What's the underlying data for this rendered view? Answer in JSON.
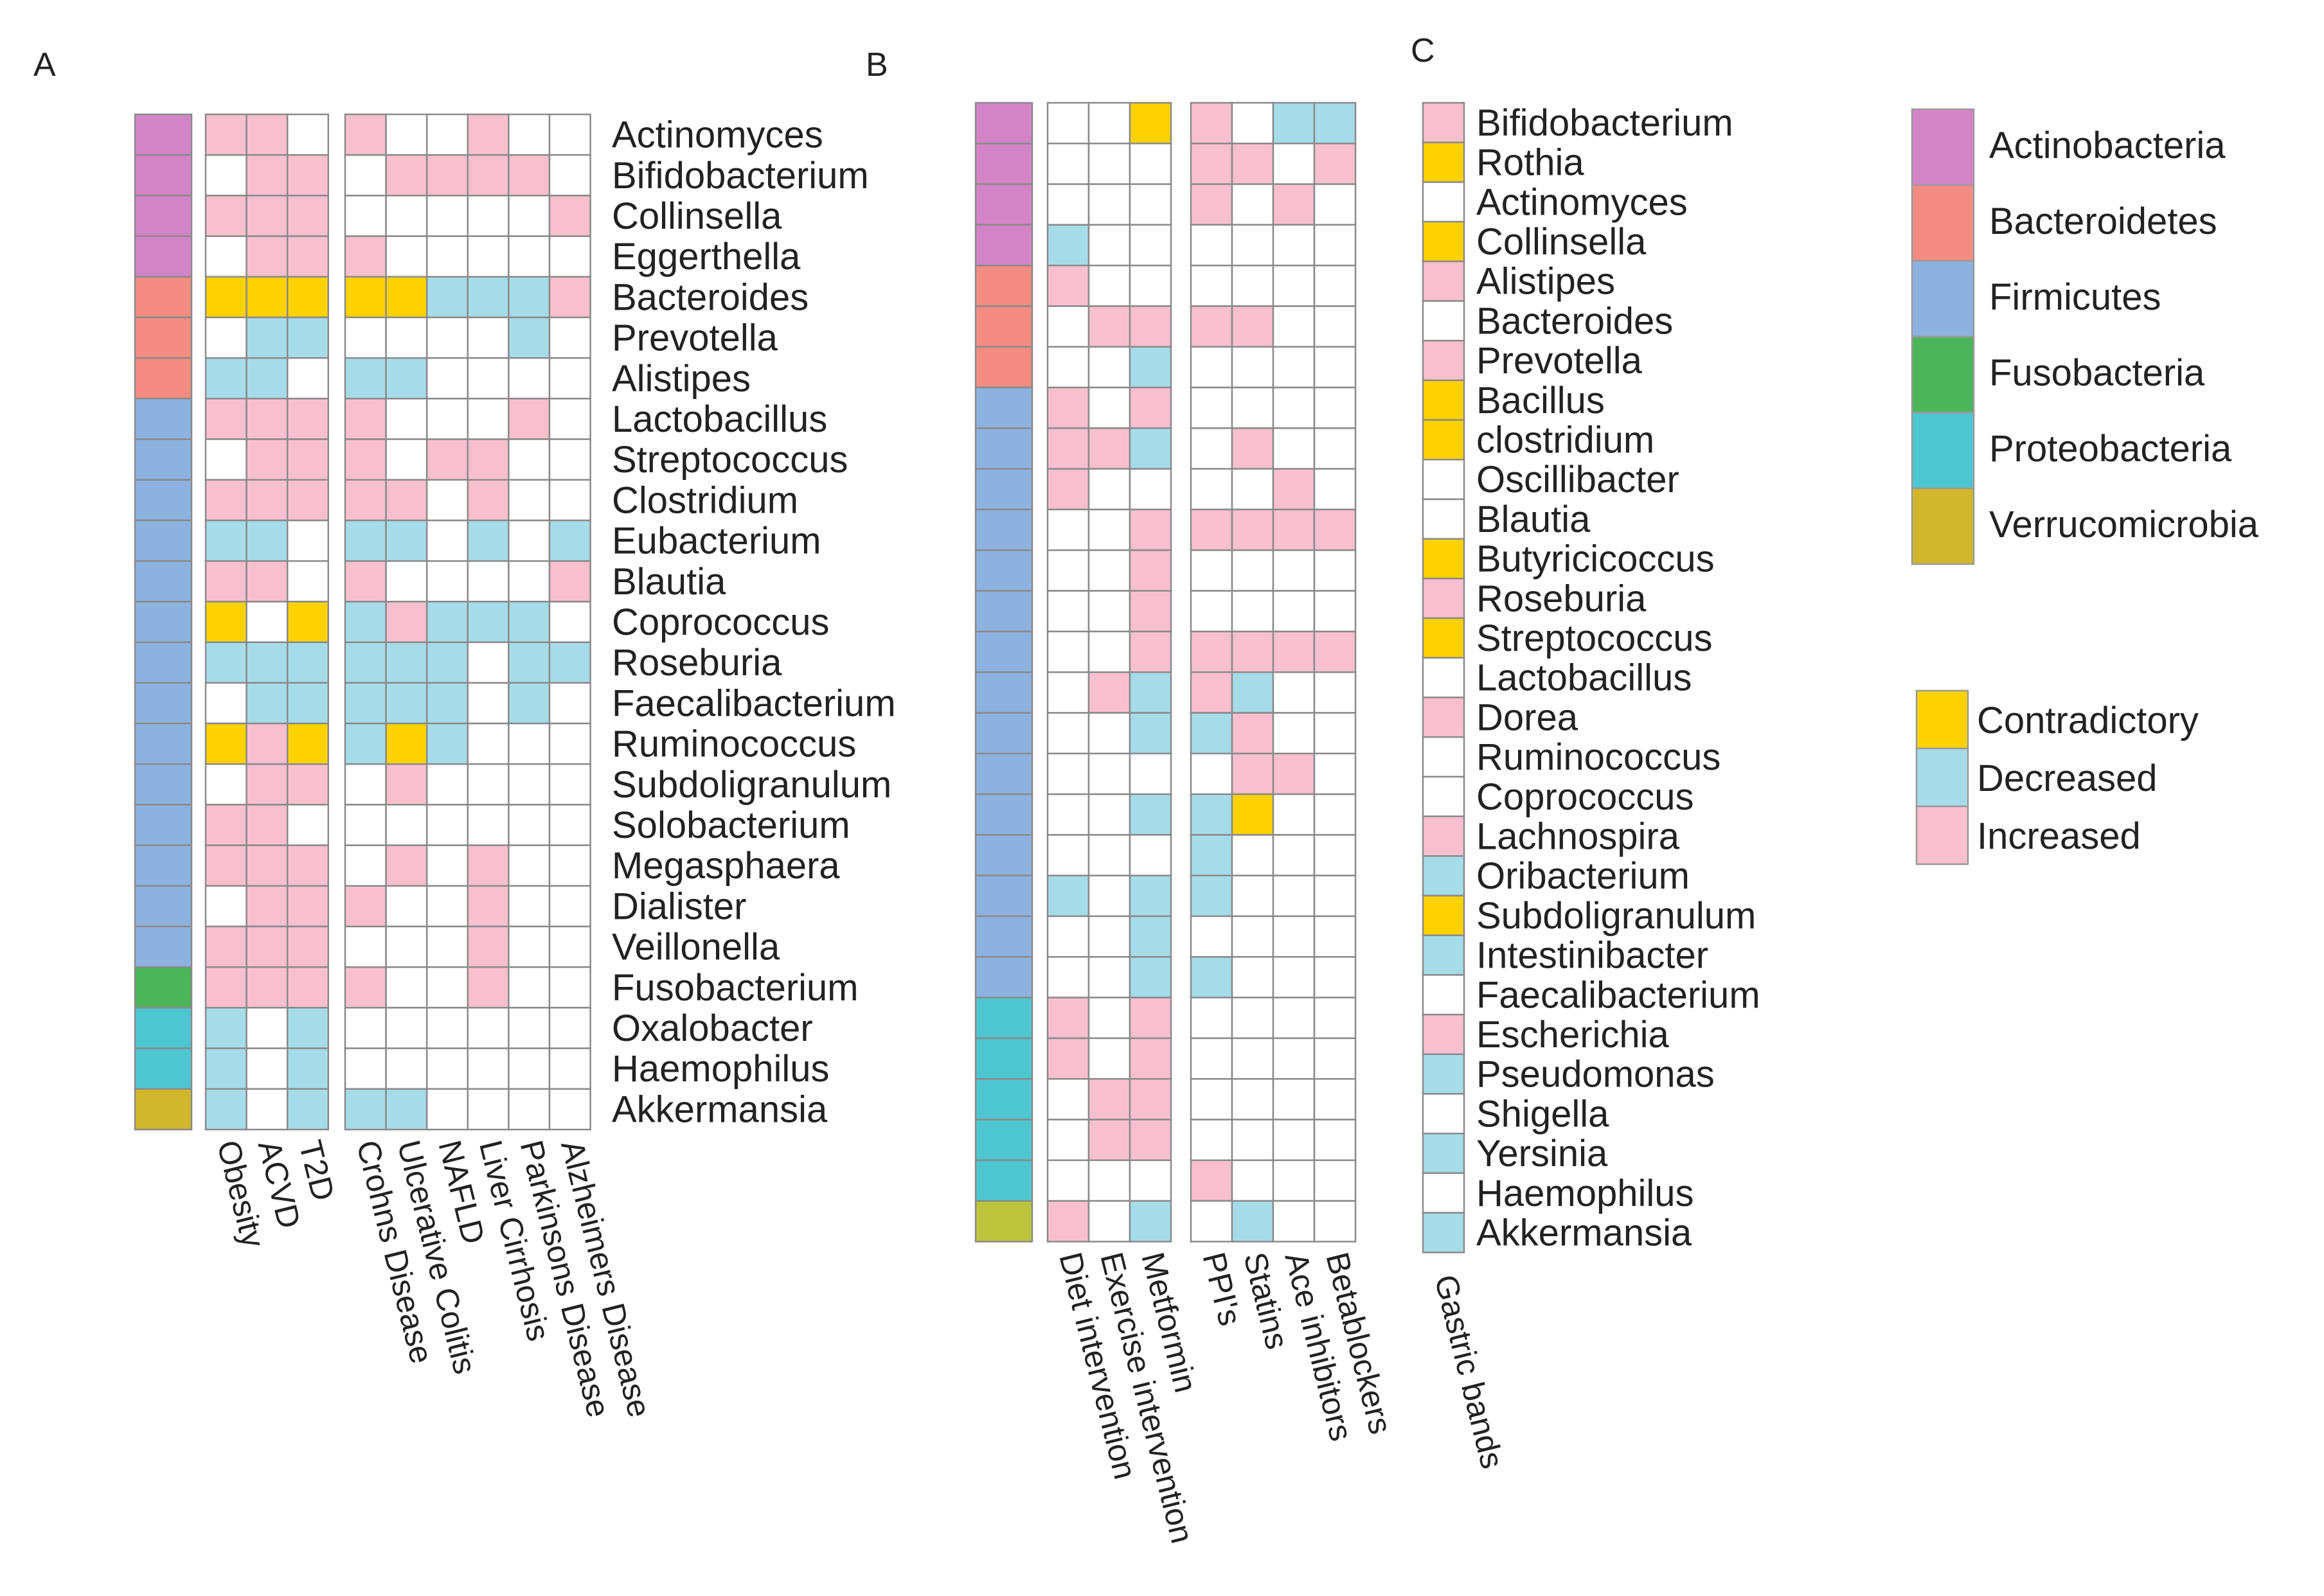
{
  "colors": {
    "phylum": {
      "Actinobacteria": "#d384c6",
      "Bacteroidetes": "#f48c82",
      "Firmicutes": "#8db2e0",
      "Fusobacteria": "#4cb55a",
      "Proteobacteria": "#4dc6d0",
      "Verrucomicrobia": "#d0b72c",
      "Verrucomicrobia_B": "#bcc43c"
    },
    "status": {
      "C": "#fdd200",
      "D": "#a6dcea",
      "I": "#f8c0cf",
      "": "#ffffff"
    },
    "grid": "#8a8a8a"
  },
  "legend": {
    "phyla": [
      {
        "label": "Actinobacteria",
        "key": "Actinobacteria"
      },
      {
        "label": "Bacteroidetes",
        "key": "Bacteroidetes"
      },
      {
        "label": "Firmicutes",
        "key": "Firmicutes"
      },
      {
        "label": "Fusobacteria",
        "key": "Fusobacteria"
      },
      {
        "label": "Proteobacteria",
        "key": "Proteobacteria"
      },
      {
        "label": "Verrucomicrobia",
        "key": "Verrucomicrobia"
      }
    ],
    "status": [
      {
        "label": "Contradictory",
        "key": "C"
      },
      {
        "label": "Decreased",
        "key": "D"
      },
      {
        "label": "Increased",
        "key": "I"
      }
    ]
  },
  "chart_data": [
    {
      "panel": "A",
      "type": "heatmap",
      "rows": [
        "Actinomyces",
        "Bifidobacterium",
        "Collinsella",
        "Eggerthella",
        "Bacteroides",
        "Prevotella",
        "Alistipes",
        "Lactobacillus",
        "Streptococcus",
        "Clostridium",
        "Eubacterium",
        "Blautia",
        "Coprococcus",
        "Roseburia",
        "Faecalibacterium",
        "Ruminococcus",
        "Subdoligranulum",
        "Solobacterium",
        "Megasphaera",
        "Dialister",
        "Veillonella",
        "Fusobacterium",
        "Oxalobacter",
        "Haemophilus",
        "Akkermansia"
      ],
      "phylum": [
        "Actinobacteria",
        "Actinobacteria",
        "Actinobacteria",
        "Actinobacteria",
        "Bacteroidetes",
        "Bacteroidetes",
        "Bacteroidetes",
        "Firmicutes",
        "Firmicutes",
        "Firmicutes",
        "Firmicutes",
        "Firmicutes",
        "Firmicutes",
        "Firmicutes",
        "Firmicutes",
        "Firmicutes",
        "Firmicutes",
        "Firmicutes",
        "Firmicutes",
        "Firmicutes",
        "Firmicutes",
        "Fusobacteria",
        "Proteobacteria",
        "Proteobacteria",
        "Verrucomicrobia"
      ],
      "groups": [
        {
          "columns": [
            "Obesity",
            "ACVD",
            "T2D"
          ],
          "values": [
            [
              "I",
              "I",
              ""
            ],
            [
              "",
              "I",
              "I"
            ],
            [
              "I",
              "I",
              "I"
            ],
            [
              "",
              "I",
              "I"
            ],
            [
              "C",
              "C",
              "C"
            ],
            [
              "",
              "D",
              "D"
            ],
            [
              "D",
              "D",
              ""
            ],
            [
              "I",
              "I",
              "I"
            ],
            [
              "",
              "I",
              "I"
            ],
            [
              "I",
              "I",
              "I"
            ],
            [
              "D",
              "D",
              ""
            ],
            [
              "I",
              "I",
              ""
            ],
            [
              "C",
              "",
              "C"
            ],
            [
              "D",
              "D",
              "D"
            ],
            [
              "",
              "D",
              "D"
            ],
            [
              "C",
              "I",
              "C"
            ],
            [
              "",
              "I",
              "I"
            ],
            [
              "I",
              "I",
              ""
            ],
            [
              "I",
              "I",
              "I"
            ],
            [
              "",
              "I",
              "I"
            ],
            [
              "I",
              "I",
              "I"
            ],
            [
              "I",
              "I",
              "I"
            ],
            [
              "D",
              "",
              "D"
            ],
            [
              "D",
              "",
              "D"
            ],
            [
              "D",
              "",
              "D"
            ]
          ]
        },
        {
          "columns": [
            "Crohns Disease",
            "Ulcerative Colitis",
            "NAFLD",
            "Liver Cirrhosis",
            "Parkinsons Disease",
            "Alzheimers Disease"
          ],
          "values": [
            [
              "I",
              "",
              "",
              "I",
              "",
              ""
            ],
            [
              "",
              "I",
              "I",
              "I",
              "I",
              ""
            ],
            [
              "",
              "",
              "",
              "",
              "",
              "I"
            ],
            [
              "I",
              "",
              "",
              "",
              "",
              ""
            ],
            [
              "C",
              "C",
              "D",
              "D",
              "D",
              "I"
            ],
            [
              "",
              "",
              "",
              "",
              "D",
              ""
            ],
            [
              "D",
              "D",
              "",
              "",
              "",
              ""
            ],
            [
              "I",
              "",
              "",
              "",
              "I",
              ""
            ],
            [
              "I",
              "",
              "I",
              "I",
              "",
              ""
            ],
            [
              "I",
              "I",
              "",
              "I",
              "",
              ""
            ],
            [
              "D",
              "D",
              "",
              "D",
              "",
              "D"
            ],
            [
              "I",
              "",
              "",
              "",
              "",
              "I"
            ],
            [
              "D",
              "I",
              "D",
              "D",
              "D",
              ""
            ],
            [
              "D",
              "D",
              "D",
              "",
              "D",
              "D"
            ],
            [
              "D",
              "D",
              "D",
              "",
              "D",
              ""
            ],
            [
              "D",
              "C",
              "D",
              "",
              "",
              ""
            ],
            [
              "",
              "I",
              "",
              "",
              "",
              ""
            ],
            [
              "",
              "",
              "",
              "",
              "",
              ""
            ],
            [
              "",
              "I",
              "",
              "I",
              "",
              ""
            ],
            [
              "I",
              "",
              "",
              "I",
              "",
              ""
            ],
            [
              "",
              "",
              "",
              "I",
              "",
              ""
            ],
            [
              "I",
              "",
              "",
              "I",
              "",
              ""
            ],
            [
              "",
              "",
              "",
              "",
              "",
              ""
            ],
            [
              "",
              "",
              "",
              "",
              "",
              ""
            ],
            [
              "D",
              "D",
              "",
              "",
              "",
              ""
            ]
          ]
        }
      ]
    },
    {
      "panel": "B",
      "type": "heatmap",
      "phylum": [
        "Actinobacteria",
        "Actinobacteria",
        "Actinobacteria",
        "Actinobacteria",
        "Bacteroidetes",
        "Bacteroidetes",
        "Bacteroidetes",
        "Firmicutes",
        "Firmicutes",
        "Firmicutes",
        "Firmicutes",
        "Firmicutes",
        "Firmicutes",
        "Firmicutes",
        "Firmicutes",
        "Firmicutes",
        "Firmicutes",
        "Firmicutes",
        "Firmicutes",
        "Firmicutes",
        "Firmicutes",
        "Firmicutes",
        "Proteobacteria",
        "Proteobacteria",
        "Proteobacteria",
        "Proteobacteria",
        "Proteobacteria",
        "Verrucomicrobia_B"
      ],
      "groups": [
        {
          "columns": [
            "Diet intervention",
            "Exercise intervention",
            "Metformin"
          ],
          "values": [
            [
              "",
              "",
              "C"
            ],
            [
              "",
              "",
              ""
            ],
            [
              "",
              "",
              ""
            ],
            [
              "D",
              "",
              ""
            ],
            [
              "I",
              "",
              ""
            ],
            [
              "",
              "I",
              "I"
            ],
            [
              "",
              "",
              "D"
            ],
            [
              "I",
              "",
              "I"
            ],
            [
              "I",
              "I",
              "D"
            ],
            [
              "I",
              "",
              ""
            ],
            [
              "",
              "",
              "I"
            ],
            [
              "",
              "",
              "I"
            ],
            [
              "",
              "",
              "I"
            ],
            [
              "",
              "",
              "I"
            ],
            [
              "",
              "I",
              "D"
            ],
            [
              "",
              "",
              "D"
            ],
            [
              "",
              "",
              ""
            ],
            [
              "",
              "",
              "D"
            ],
            [
              "",
              "",
              ""
            ],
            [
              "D",
              "",
              "D"
            ],
            [
              "",
              "",
              "D"
            ],
            [
              "",
              "",
              "D"
            ],
            [
              "I",
              "",
              "I"
            ],
            [
              "I",
              "",
              "I"
            ],
            [
              "",
              "I",
              "I"
            ],
            [
              "",
              "I",
              "I"
            ],
            [
              "",
              "",
              ""
            ],
            [
              "I",
              "",
              "D"
            ]
          ]
        },
        {
          "columns": [
            "PPI's",
            "Statins",
            "Ace inhibitors",
            "Betablockers"
          ],
          "values": [
            [
              "I",
              "",
              "D",
              "D"
            ],
            [
              "I",
              "I",
              "",
              "I"
            ],
            [
              "I",
              "",
              "I",
              ""
            ],
            [
              "",
              "",
              "",
              ""
            ],
            [
              "",
              "",
              "",
              ""
            ],
            [
              "I",
              "I",
              "",
              ""
            ],
            [
              "",
              "",
              "",
              ""
            ],
            [
              "",
              "",
              "",
              ""
            ],
            [
              "",
              "I",
              "",
              ""
            ],
            [
              "",
              "",
              "I",
              ""
            ],
            [
              "I",
              "I",
              "I",
              "I"
            ],
            [
              "",
              "",
              "",
              ""
            ],
            [
              "",
              "",
              "",
              ""
            ],
            [
              "I",
              "I",
              "I",
              "I"
            ],
            [
              "I",
              "D",
              "",
              ""
            ],
            [
              "D",
              "I",
              "",
              ""
            ],
            [
              "",
              "I",
              "I",
              ""
            ],
            [
              "D",
              "C",
              "",
              ""
            ],
            [
              "D",
              "",
              "",
              ""
            ],
            [
              "D",
              "",
              "",
              ""
            ],
            [
              "",
              "",
              "",
              ""
            ],
            [
              "D",
              "",
              "",
              ""
            ],
            [
              "",
              "",
              "",
              ""
            ],
            [
              "",
              "",
              "",
              ""
            ],
            [
              "",
              "",
              "",
              ""
            ],
            [
              "",
              "",
              "",
              ""
            ],
            [
              "I",
              "",
              "",
              ""
            ],
            [
              "",
              "D",
              "",
              ""
            ]
          ]
        }
      ]
    },
    {
      "panel": "C",
      "type": "heatmap",
      "rows": [
        "Bifidobacterium",
        "Rothia",
        "Actinomyces",
        "Collinsella",
        "Alistipes",
        "Bacteroides",
        "Prevotella",
        "Bacillus",
        "clostridium",
        "Oscillibacter",
        "Blautia",
        "Butyricicoccus",
        "Roseburia",
        "Streptococcus",
        "Lactobacillus",
        "Dorea",
        "Ruminococcus",
        "Coprococcus",
        "Lachnospira",
        "Oribacterium",
        "Subdoligranulum",
        "Intestinibacter",
        "Faecalibacterium",
        "Escherichia",
        "Pseudomonas",
        "Shigella",
        "Yersinia",
        "Haemophilus",
        "Akkermansia"
      ],
      "groups": [
        {
          "columns": [
            "Gastric bands"
          ],
          "values": [
            [
              "I"
            ],
            [
              "C"
            ],
            [
              ""
            ],
            [
              "C"
            ],
            [
              "I"
            ],
            [
              ""
            ],
            [
              "I"
            ],
            [
              "C"
            ],
            [
              "C"
            ],
            [
              ""
            ],
            [
              ""
            ],
            [
              "C"
            ],
            [
              "I"
            ],
            [
              "C"
            ],
            [
              ""
            ],
            [
              "I"
            ],
            [
              ""
            ],
            [
              ""
            ],
            [
              "I"
            ],
            [
              "D"
            ],
            [
              "C"
            ],
            [
              "D"
            ],
            [
              ""
            ],
            [
              "I"
            ],
            [
              "D"
            ],
            [
              ""
            ],
            [
              "D"
            ],
            [
              ""
            ],
            [
              "D"
            ]
          ]
        }
      ]
    }
  ]
}
